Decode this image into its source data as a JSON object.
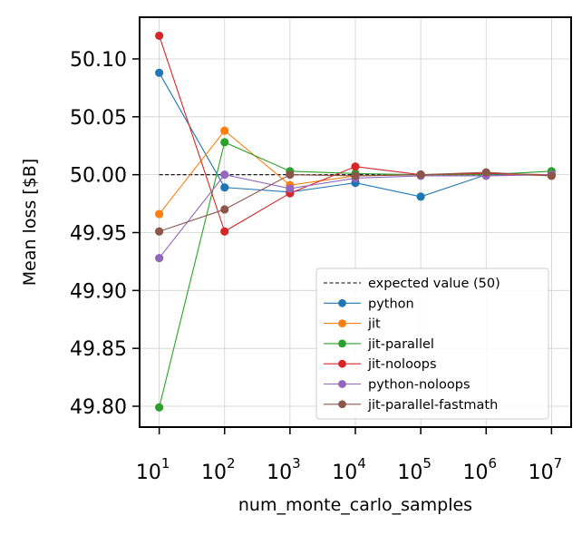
{
  "chart_data": {
    "type": "line",
    "title": "",
    "xlabel": "num_monte_carlo_samples",
    "ylabel": "Mean loss [$B]",
    "x_scale": "log",
    "x": [
      10,
      100,
      1000,
      10000,
      100000,
      1000000,
      10000000
    ],
    "x_tick_base": "10",
    "x_tick_exponents": [
      "1",
      "2",
      "3",
      "4",
      "5",
      "6",
      "7"
    ],
    "ylim": [
      49.782,
      50.136
    ],
    "y_ticks": [
      49.8,
      49.85,
      49.9,
      49.95,
      50.0,
      50.05,
      50.1
    ],
    "y_tick_labels": [
      "49.80",
      "49.85",
      "49.90",
      "49.95",
      "50.00",
      "50.05",
      "50.10"
    ],
    "grid": true,
    "legend_position": "lower-right",
    "reference_line": {
      "name": "expected value (50)",
      "value": 50.0,
      "color": "#000000"
    },
    "series": [
      {
        "name": "python",
        "color": "#1f77b4",
        "values": [
          50.088,
          49.989,
          49.985,
          49.993,
          49.981,
          50.0,
          50.0
        ]
      },
      {
        "name": "jit",
        "color": "#ff7f0e",
        "values": [
          49.966,
          50.038,
          49.991,
          49.999,
          50.0,
          50.001,
          49.999
        ]
      },
      {
        "name": "jit-parallel",
        "color": "#2ca02c",
        "values": [
          49.799,
          50.028,
          50.003,
          50.001,
          50.0,
          50.0,
          50.003
        ]
      },
      {
        "name": "jit-noloops",
        "color": "#d62728",
        "values": [
          50.12,
          49.951,
          49.984,
          50.007,
          50.0,
          50.001,
          50.0
        ]
      },
      {
        "name": "python-noloops",
        "color": "#9467bd",
        "values": [
          49.928,
          50.0,
          49.988,
          49.997,
          49.999,
          49.999,
          50.0
        ]
      },
      {
        "name": "jit-parallel-fastmath",
        "color": "#8c564b",
        "values": [
          49.951,
          49.97,
          50.0,
          49.999,
          50.0,
          50.002,
          49.999
        ]
      }
    ]
  }
}
